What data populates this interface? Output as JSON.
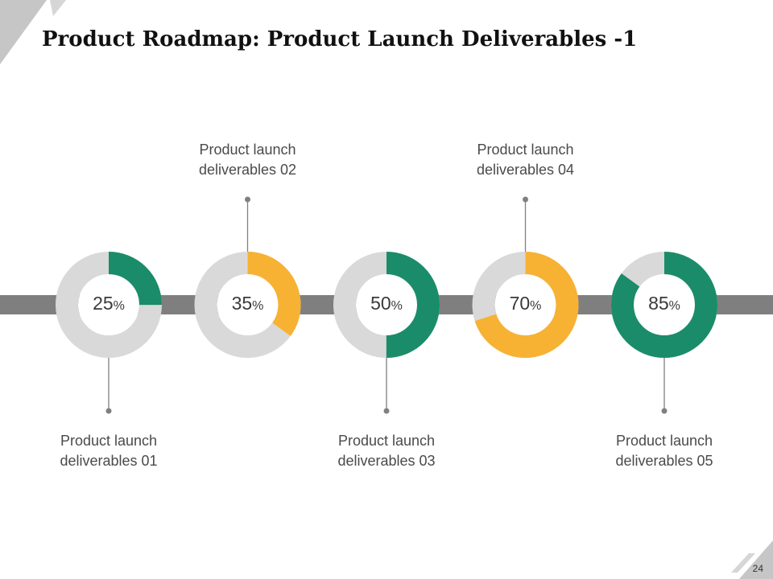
{
  "title": "Product Roadmap: Product Launch Deliverables -1",
  "page_number": "24",
  "colors": {
    "green": "#1a8c69",
    "orange": "#f7b234",
    "ring_track": "#d9d9d9",
    "timeline_bar": "#7f7f7f",
    "connector": "#808080"
  },
  "deliverables": [
    {
      "line1": "Product launch",
      "line2": "deliverables 01",
      "value": 25,
      "value_text": "25",
      "unit": "%",
      "color": "green",
      "label_position": "bottom"
    },
    {
      "line1": "Product launch",
      "line2": "deliverables 02",
      "value": 35,
      "value_text": "35",
      "unit": "%",
      "color": "orange",
      "label_position": "top"
    },
    {
      "line1": "Product launch",
      "line2": "deliverables 03",
      "value": 50,
      "value_text": "50",
      "unit": "%",
      "color": "green",
      "label_position": "bottom"
    },
    {
      "line1": "Product launch",
      "line2": "deliverables 04",
      "value": 70,
      "value_text": "70",
      "unit": "%",
      "color": "orange",
      "label_position": "top"
    },
    {
      "line1": "Product launch",
      "line2": "deliverables 05",
      "value": 85,
      "value_text": "85",
      "unit": "%",
      "color": "green",
      "label_position": "bottom"
    }
  ]
}
